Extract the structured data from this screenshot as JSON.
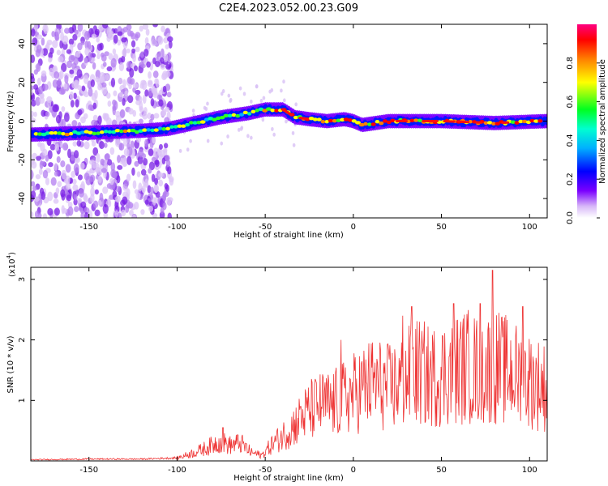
{
  "title": "C2E4.2023.052.00.23.G09",
  "chart_data": [
    {
      "type": "heatmap",
      "xlabel": "Height of straight line (km)",
      "ylabel": "Frequency (Hz)",
      "xlim": [
        -183,
        110
      ],
      "ylim": [
        -50,
        50
      ],
      "xticks": [
        -150,
        -100,
        -50,
        0,
        50,
        100
      ],
      "yticks": [
        -40,
        -20,
        0,
        20,
        40
      ],
      "colorbar": {
        "label": "Normalized spectral amplitude",
        "range": [
          0,
          1
        ],
        "ticks": [
          "0.0",
          "0.2",
          "0.4",
          "0.6",
          "0.8"
        ],
        "colormap": [
          "#ffffff",
          "#c8a2f0",
          "#7a00ff",
          "#0000ff",
          "#00e0ff",
          "#00ff40",
          "#ffff00",
          "#ff8000",
          "#ff0000",
          "#ff0080"
        ]
      },
      "ridge": {
        "x": [
          -183,
          -150,
          -120,
          -105,
          -90,
          -75,
          -60,
          -50,
          -45,
          -40,
          -33,
          -25,
          -15,
          -5,
          0,
          5,
          20,
          50,
          80,
          110
        ],
        "y": [
          -7,
          -6,
          -5,
          -4,
          -1,
          2,
          4,
          6,
          6,
          6,
          2,
          1,
          0,
          1,
          0,
          -2,
          0,
          0,
          -1,
          0
        ]
      }
    },
    {
      "type": "line",
      "xlabel": "Height of straight line (km)",
      "ylabel": "SNR (10 * v/v)",
      "yscale_label": "(x10",
      "yscale_exp": "4",
      "xlim": [
        -183,
        110
      ],
      "ylim": [
        0,
        3.2
      ],
      "xticks": [
        -150,
        -100,
        -50,
        0,
        50,
        100
      ],
      "yticks": [
        1,
        2,
        3
      ],
      "color": "#ee3333",
      "series": [
        {
          "x": [
            -183,
            -150,
            -120,
            -100,
            -90,
            -82,
            -76,
            -70,
            -64,
            -58,
            -52,
            -46,
            -40,
            -35,
            -30,
            -25,
            -18,
            -12,
            -6,
            0,
            5,
            12,
            20,
            28,
            35,
            45,
            55,
            65,
            72,
            80,
            88,
            95,
            103,
            110
          ],
          "y": [
            0.02,
            0.03,
            0.03,
            0.05,
            0.15,
            0.25,
            0.35,
            0.28,
            0.32,
            0.15,
            0.1,
            0.3,
            0.45,
            0.6,
            0.75,
            0.9,
            1.0,
            1.0,
            1.1,
            1.2,
            1.3,
            1.4,
            1.3,
            1.4,
            1.6,
            1.5,
            1.6,
            1.7,
            1.6,
            1.7,
            1.6,
            1.5,
            1.4,
            1.3
          ]
        }
      ],
      "peaks": [
        {
          "x": -74,
          "y": 0.55
        },
        {
          "x": -30,
          "y": 0.9
        },
        {
          "x": -7,
          "y": 2.0
        },
        {
          "x": 28,
          "y": 2.4
        },
        {
          "x": 33,
          "y": 2.55
        },
        {
          "x": 57,
          "y": 2.6
        },
        {
          "x": 72,
          "y": 2.6
        },
        {
          "x": 79,
          "y": 3.15
        },
        {
          "x": 96,
          "y": 2.55
        }
      ]
    }
  ]
}
